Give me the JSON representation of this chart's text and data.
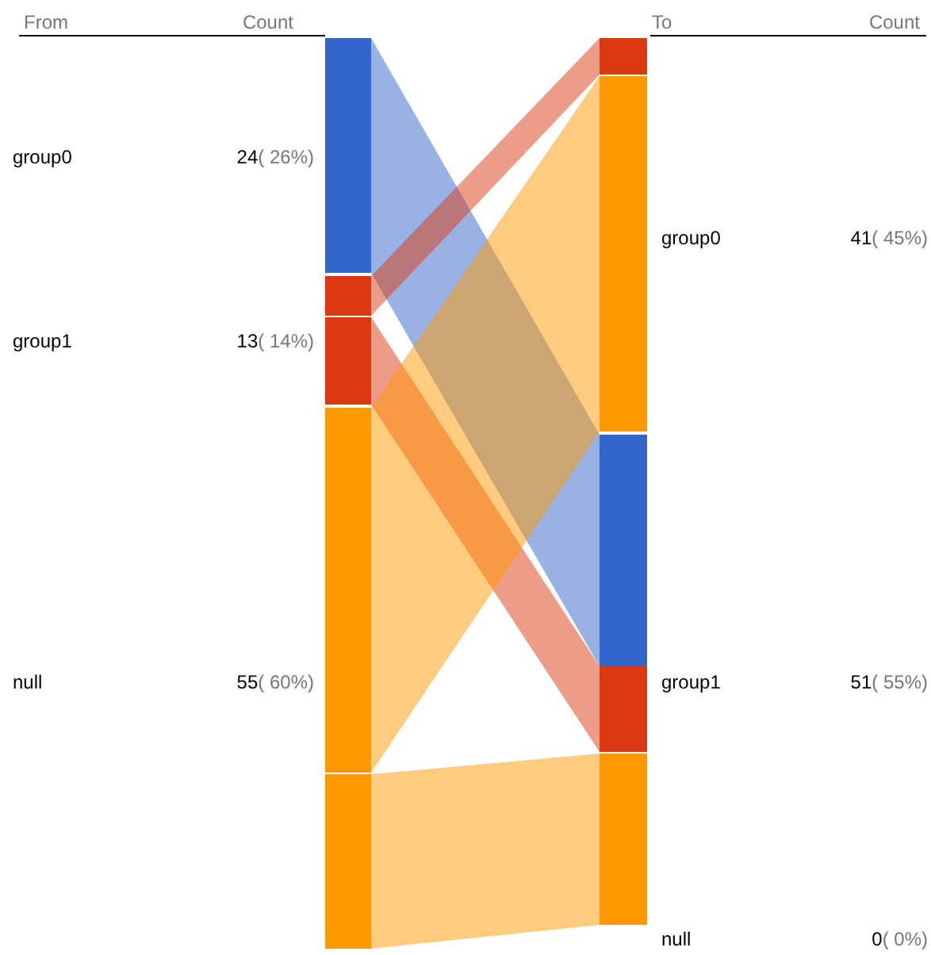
{
  "chart_data": [
    {
      "type": "other",
      "xlabel": "From",
      "ylabel": "Count",
      "categories": [
        "group0",
        "group1",
        "null"
      ],
      "values": [
        24,
        13,
        55
      ],
      "value_labels": [
        "24( 26%)",
        "13( 14%)",
        "55( 60%)"
      ],
      "colors": [
        "#3366cc",
        "#dc3912",
        "#ff9900"
      ]
    },
    {
      "type": "other",
      "xlabel": "To",
      "ylabel": "Count",
      "categories": [
        "group0",
        "group1",
        "null"
      ],
      "values": [
        41,
        51,
        0
      ],
      "value_labels": [
        "41( 45%)",
        "51( 55%)",
        "0( 0%)"
      ]
    }
  ]
}
